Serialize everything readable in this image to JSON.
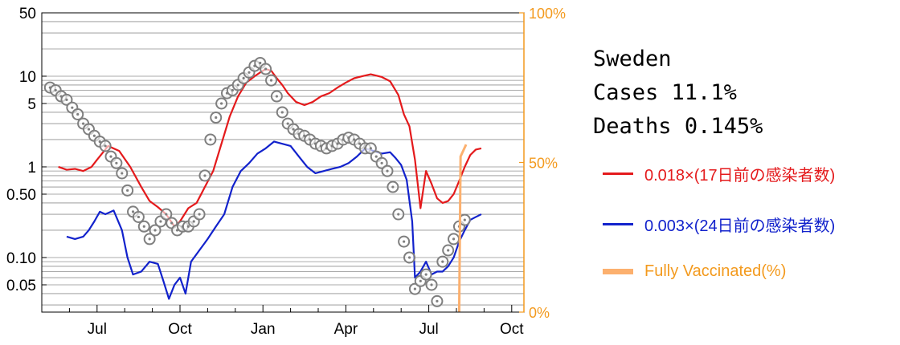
{
  "chart_data": {
    "type": "line",
    "title": "Sweden",
    "y_scale": "log",
    "ylim": [
      0.025,
      50
    ],
    "y_ticks": [
      "50",
      "10",
      "5",
      "1",
      "0.50",
      "0.10",
      "0.05"
    ],
    "y_tick_values": [
      50,
      10,
      5,
      1,
      0.5,
      0.1,
      0.05
    ],
    "y2lim": [
      0,
      100
    ],
    "y2_ticks": [
      "100%",
      "50%",
      "0%"
    ],
    "y2_tick_values": [
      100,
      50,
      0
    ],
    "x_domain_months": [
      0,
      16
    ],
    "x_ticks": [
      "Jul",
      "Oct",
      "Jan",
      "Apr",
      "Jul",
      "Oct"
    ],
    "x_tick_positions": [
      2,
      5,
      8,
      11,
      14,
      17
    ],
    "series": [
      {
        "name": "0.018×(17日前の感染者数)",
        "color": "#e41a1c",
        "x": [
          0.6,
          0.9,
          1.2,
          1.5,
          1.8,
          2.0,
          2.4,
          2.8,
          3.2,
          3.6,
          3.9,
          4.2,
          4.5,
          4.8,
          5.0,
          5.3,
          5.6,
          5.9,
          6.2,
          6.5,
          6.8,
          7.1,
          7.4,
          7.7,
          7.9,
          8.1,
          8.3,
          8.5,
          8.7,
          8.9,
          9.2,
          9.5,
          9.8,
          10.1,
          10.4,
          10.7,
          11.0,
          11.3,
          11.6,
          11.9,
          12.3,
          12.6,
          12.9,
          13.1,
          13.3,
          13.5,
          13.7,
          13.9,
          14.1,
          14.3,
          14.5,
          14.7,
          14.9,
          15.1,
          15.3,
          15.5,
          15.7,
          15.9
        ],
        "values": [
          1.0,
          0.93,
          0.95,
          0.9,
          1.0,
          1.2,
          1.7,
          1.5,
          1.0,
          0.6,
          0.42,
          0.36,
          0.3,
          0.22,
          0.25,
          0.35,
          0.4,
          0.6,
          0.9,
          1.8,
          3.6,
          6.0,
          8.5,
          10.0,
          11.0,
          12.0,
          11.5,
          9.5,
          8.0,
          6.5,
          5.2,
          4.8,
          5.2,
          6.0,
          6.5,
          7.5,
          8.5,
          9.5,
          10.0,
          10.5,
          9.8,
          8.8,
          6.2,
          3.8,
          2.8,
          1.2,
          0.35,
          0.9,
          0.65,
          0.45,
          0.4,
          0.42,
          0.5,
          0.7,
          1.0,
          1.35,
          1.55,
          1.6
        ]
      },
      {
        "name": "0.003×(24日前の感染者数)",
        "color": "#1222cc",
        "x": [
          0.9,
          1.2,
          1.5,
          1.7,
          1.9,
          2.1,
          2.3,
          2.6,
          2.9,
          3.1,
          3.3,
          3.6,
          3.9,
          4.2,
          4.4,
          4.6,
          4.8,
          5.0,
          5.2,
          5.4,
          5.7,
          6.0,
          6.3,
          6.6,
          6.9,
          7.2,
          7.5,
          7.8,
          8.1,
          8.4,
          8.7,
          9.0,
          9.3,
          9.6,
          9.9,
          10.2,
          10.5,
          10.8,
          11.1,
          11.4,
          11.7,
          12.0,
          12.3,
          12.6,
          12.8,
          13.0,
          13.2,
          13.4,
          13.5,
          13.7,
          13.9,
          14.1,
          14.3,
          14.5,
          14.7,
          14.9,
          15.1,
          15.3,
          15.5,
          15.7,
          15.9
        ],
        "values": [
          0.17,
          0.16,
          0.17,
          0.2,
          0.25,
          0.32,
          0.3,
          0.33,
          0.2,
          0.1,
          0.065,
          0.07,
          0.09,
          0.085,
          0.055,
          0.035,
          0.05,
          0.06,
          0.04,
          0.09,
          0.12,
          0.16,
          0.22,
          0.3,
          0.6,
          0.9,
          1.1,
          1.4,
          1.6,
          1.9,
          1.8,
          1.7,
          1.3,
          1.0,
          0.85,
          0.9,
          0.95,
          1.0,
          1.1,
          1.3,
          1.6,
          1.5,
          1.4,
          1.45,
          1.25,
          1.05,
          0.72,
          0.25,
          0.06,
          0.07,
          0.09,
          0.065,
          0.07,
          0.07,
          0.08,
          0.1,
          0.15,
          0.2,
          0.26,
          0.28,
          0.3
        ]
      },
      {
        "name": "deaths (points)",
        "color": "#7f7f7f",
        "x": [
          0.3,
          0.5,
          0.7,
          0.9,
          1.1,
          1.3,
          1.5,
          1.7,
          1.9,
          2.1,
          2.3,
          2.5,
          2.7,
          2.9,
          3.1,
          3.3,
          3.5,
          3.7,
          3.9,
          4.1,
          4.3,
          4.5,
          4.7,
          4.9,
          5.1,
          5.3,
          5.5,
          5.7,
          5.9,
          6.1,
          6.3,
          6.5,
          6.7,
          6.9,
          7.1,
          7.3,
          7.5,
          7.7,
          7.9,
          8.1,
          8.3,
          8.5,
          8.7,
          8.9,
          9.1,
          9.3,
          9.5,
          9.7,
          9.9,
          10.1,
          10.3,
          10.5,
          10.7,
          10.9,
          11.1,
          11.3,
          11.5,
          11.7,
          11.9,
          12.1,
          12.3,
          12.5,
          12.7,
          12.9,
          13.1,
          13.3,
          13.5,
          13.7,
          13.9,
          14.1,
          14.3,
          14.5,
          14.7,
          14.9,
          15.1,
          15.3
        ],
        "values": [
          7.5,
          7.0,
          6.0,
          5.5,
          4.5,
          3.8,
          3.0,
          2.6,
          2.2,
          1.9,
          1.7,
          1.3,
          1.1,
          0.85,
          0.55,
          0.32,
          0.28,
          0.22,
          0.16,
          0.2,
          0.25,
          0.3,
          0.24,
          0.2,
          0.22,
          0.22,
          0.25,
          0.3,
          0.8,
          2.0,
          3.5,
          5.0,
          6.5,
          7.0,
          8.0,
          9.5,
          11.0,
          13.0,
          14.0,
          12.0,
          9.0,
          6.0,
          4.0,
          3.0,
          2.6,
          2.3,
          2.2,
          2.0,
          1.8,
          1.7,
          1.6,
          1.7,
          1.8,
          2.0,
          2.1,
          2.0,
          1.8,
          1.6,
          1.6,
          1.3,
          1.1,
          0.9,
          0.6,
          0.3,
          0.15,
          0.1,
          0.045,
          0.055,
          0.065,
          0.05,
          0.033,
          0.09,
          0.12,
          0.16,
          0.22,
          0.26
        ]
      },
      {
        "name": "Fully Vaccinated(%)",
        "color": "#fcb06e",
        "axis": "right",
        "x": [
          15.1,
          15.15,
          15.35
        ],
        "values": [
          0,
          52,
          56
        ]
      }
    ],
    "legend": [
      "0.018×(17日前の感染者数)",
      "0.003×(24日前の感染者数)",
      "Fully Vaccinated(%)"
    ]
  },
  "info": {
    "country": "Sweden",
    "cases_label": "Cases",
    "cases_value": "11.1%",
    "deaths_label": "Deaths",
    "deaths_value": "0.145%"
  },
  "colors": {
    "red": "#e41a1c",
    "blue": "#1222cc",
    "gray": "#7f7f7f",
    "orange": "#f39a1e",
    "vacc": "#fcb06e"
  }
}
